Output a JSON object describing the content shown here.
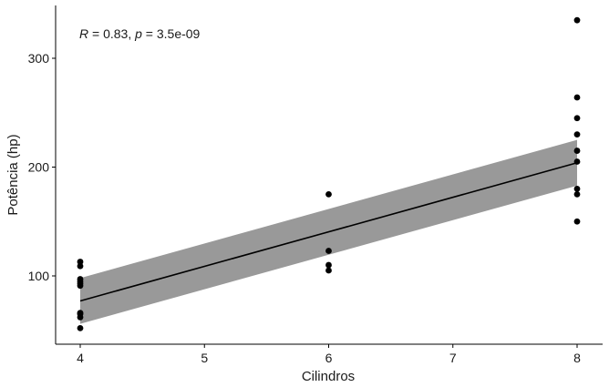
{
  "chart_data": {
    "type": "scatter",
    "xlabel": "Cilindros",
    "ylabel": "Potência (hp)",
    "xlim": [
      3.9,
      8.2
    ],
    "ylim": [
      40,
      350
    ],
    "xticks": [
      4,
      5,
      6,
      7,
      8
    ],
    "yticks": [
      100,
      200,
      300
    ],
    "grid": false,
    "annotation": {
      "r_label": "R",
      "r_value": " = 0.83, ",
      "p_label": "p",
      "p_value": " = 3.5e-09"
    },
    "points": [
      {
        "x": 4,
        "y": 113
      },
      {
        "x": 4,
        "y": 109
      },
      {
        "x": 4,
        "y": 97
      },
      {
        "x": 4,
        "y": 95
      },
      {
        "x": 4,
        "y": 93
      },
      {
        "x": 4,
        "y": 91
      },
      {
        "x": 4,
        "y": 66
      },
      {
        "x": 4,
        "y": 65
      },
      {
        "x": 4,
        "y": 62
      },
      {
        "x": 4,
        "y": 52
      },
      {
        "x": 6,
        "y": 175
      },
      {
        "x": 6,
        "y": 123
      },
      {
        "x": 6,
        "y": 110
      },
      {
        "x": 6,
        "y": 105
      },
      {
        "x": 8,
        "y": 335
      },
      {
        "x": 8,
        "y": 264
      },
      {
        "x": 8,
        "y": 245
      },
      {
        "x": 8,
        "y": 230
      },
      {
        "x": 8,
        "y": 215
      },
      {
        "x": 8,
        "y": 205
      },
      {
        "x": 8,
        "y": 180
      },
      {
        "x": 8,
        "y": 175
      },
      {
        "x": 8,
        "y": 150
      }
    ],
    "fit": {
      "x": [
        4,
        8
      ],
      "y": [
        77,
        204
      ],
      "ci_lower": [
        56,
        183
      ],
      "ci_upper": [
        98,
        225
      ]
    },
    "colors": {
      "points": "#000000",
      "line": "#000000",
      "ribbon": "#999999",
      "axis": "#000000"
    }
  }
}
